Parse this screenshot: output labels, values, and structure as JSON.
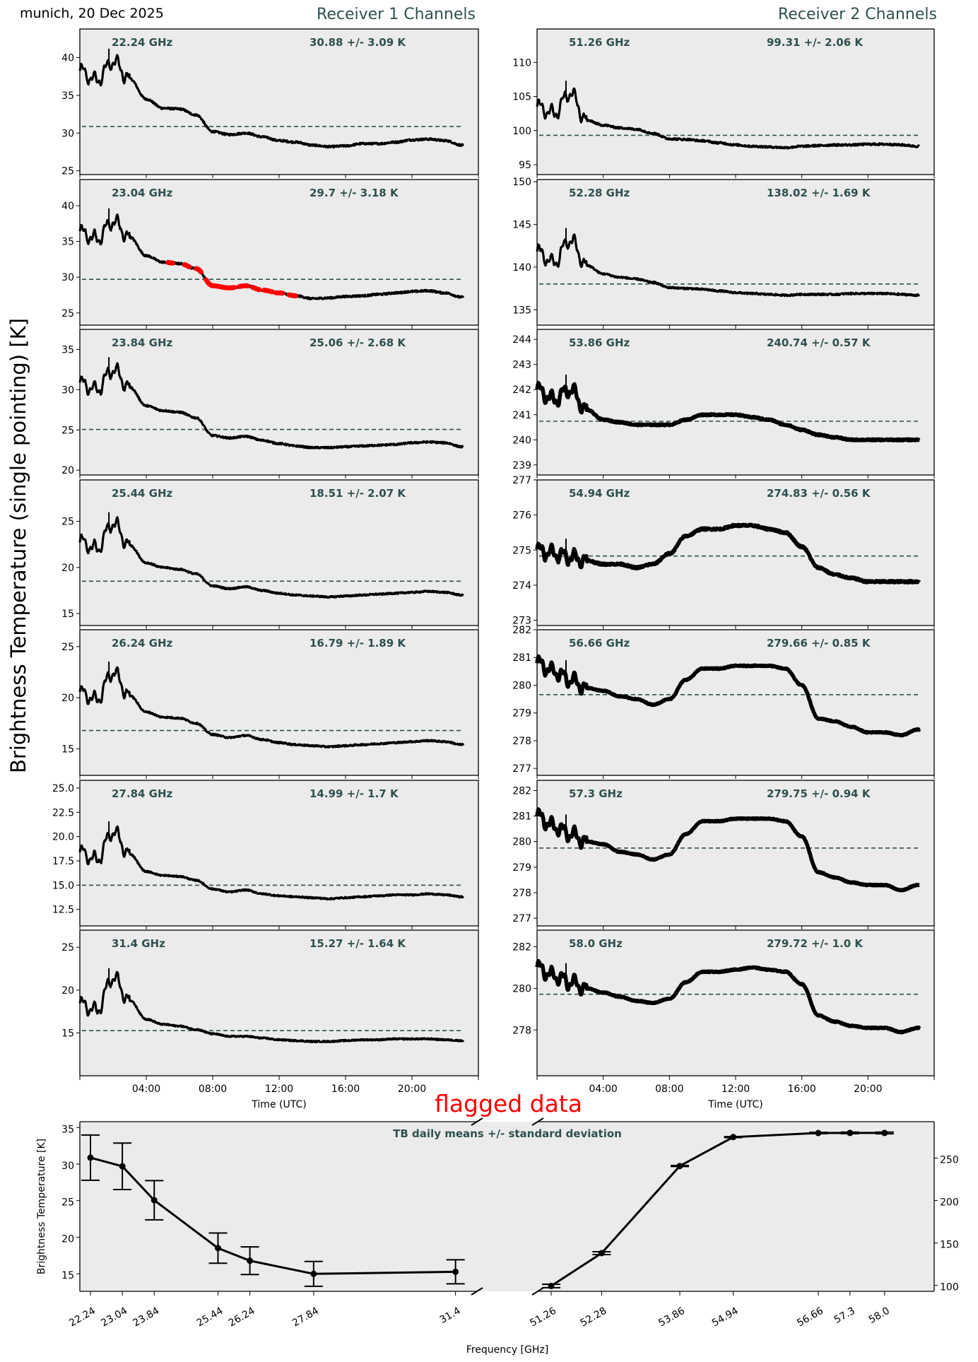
{
  "header": {
    "location_date": "munich, 20 Dec 2025",
    "receiver1_title": "Receiver 1 Channels",
    "receiver2_title": "Receiver 2 Channels",
    "shared_ylabel": "Brightness Temperature (single pointing) [K]",
    "flag_label": "flagged data"
  },
  "colors": {
    "accent": "#2f4f4f",
    "flag": "#ff0000",
    "panel_bg": "#ebebeb",
    "trace": "#000000"
  },
  "chart_data": [
    {
      "type": "line",
      "title": "Receiver 1 Channels",
      "xlabel": "Time (UTC)",
      "xticks": [
        "04:00",
        "08:00",
        "12:00",
        "16:00",
        "20:00"
      ],
      "x_hours": [
        0,
        1,
        2,
        3,
        4,
        5,
        6,
        7,
        8,
        9,
        10,
        11,
        12,
        13,
        14,
        15,
        16,
        17,
        18,
        19,
        20,
        21,
        22,
        23
      ],
      "series": [
        {
          "name": "22.24 GHz",
          "label": "30.88 +/- 3.09 K",
          "mean": 30.88,
          "ylim": [
            24.5,
            43.8
          ],
          "yticks": [
            "25",
            "30",
            "35",
            "40"
          ],
          "yvals": [
            25,
            30,
            35,
            40
          ],
          "values": [
            38.2,
            37.0,
            39.5,
            37.2,
            34.5,
            33.3,
            33.2,
            32.4,
            30.2,
            29.8,
            30.0,
            29.5,
            29.0,
            28.8,
            28.4,
            28.2,
            28.3,
            28.6,
            28.6,
            28.8,
            29.1,
            29.2,
            29.0,
            28.4
          ],
          "noise": 0.25
        },
        {
          "name": "23.04 GHz",
          "label": "29.7 +/- 3.18 K",
          "mean": 29.7,
          "ylim": [
            23.3,
            43.65
          ],
          "yticks": [
            "25",
            "30",
            "35",
            "40"
          ],
          "yvals": [
            25,
            30,
            35,
            40
          ],
          "values": [
            36.3,
            35.3,
            37.8,
            35.6,
            33.0,
            32.1,
            31.9,
            31.2,
            28.8,
            28.5,
            28.8,
            28.2,
            27.8,
            27.4,
            27.0,
            27.1,
            27.3,
            27.4,
            27.6,
            27.8,
            28.0,
            28.1,
            27.8,
            27.2
          ],
          "noise": 0.25,
          "flagged_hours": [
            [
              5.3,
              5.6
            ],
            [
              6.3,
              6.6
            ],
            [
              7.0,
              7.3
            ],
            [
              7.6,
              9.3
            ],
            [
              9.6,
              10.1
            ],
            [
              10.4,
              10.8
            ],
            [
              11.1,
              11.6
            ],
            [
              11.8,
              12.2
            ],
            [
              12.6,
              13.0
            ]
          ]
        },
        {
          "name": "23.84 GHz",
          "label": "25.06 +/- 2.68 K",
          "mean": 25.06,
          "ylim": [
            19.4,
            37.5
          ],
          "yticks": [
            "20",
            "25",
            "30",
            "35"
          ],
          "yvals": [
            20,
            25,
            30,
            35
          ],
          "values": [
            30.8,
            30.0,
            32.5,
            30.3,
            28.0,
            27.4,
            27.2,
            26.5,
            24.3,
            24.0,
            24.2,
            23.7,
            23.3,
            23.0,
            22.8,
            22.8,
            22.9,
            23.0,
            23.1,
            23.2,
            23.4,
            23.5,
            23.4,
            22.9
          ],
          "noise": 0.22
        },
        {
          "name": "25.44 GHz",
          "label": "18.51 +/- 2.07 K",
          "mean": 18.51,
          "ylim": [
            13.7,
            29.5
          ],
          "yticks": [
            "15",
            "20",
            "25"
          ],
          "yvals": [
            15,
            20,
            25
          ],
          "values": [
            22.8,
            22.0,
            24.8,
            22.4,
            20.5,
            20.0,
            19.8,
            19.3,
            18.0,
            17.7,
            17.9,
            17.5,
            17.2,
            17.0,
            16.9,
            16.8,
            16.9,
            17.0,
            17.1,
            17.2,
            17.3,
            17.4,
            17.3,
            17.0
          ],
          "noise": 0.2
        },
        {
          "name": "26.24 GHz",
          "label": "16.79 +/- 1.89 K",
          "mean": 16.79,
          "ylim": [
            12.4,
            26.65
          ],
          "yticks": [
            "15",
            "20",
            "25"
          ],
          "yvals": [
            15,
            20,
            25
          ],
          "values": [
            20.5,
            19.8,
            22.5,
            20.2,
            18.6,
            18.1,
            18.0,
            17.5,
            16.4,
            16.1,
            16.3,
            15.9,
            15.6,
            15.4,
            15.3,
            15.2,
            15.3,
            15.4,
            15.5,
            15.6,
            15.7,
            15.8,
            15.7,
            15.4
          ],
          "noise": 0.2
        },
        {
          "name": "27.84 GHz",
          "label": "14.99 +/- 1.7 K",
          "mean": 14.99,
          "ylim": [
            10.8,
            25.8
          ],
          "yticks": [
            "12.5",
            "15.0",
            "17.5",
            "20.0",
            "22.5",
            "25.0"
          ],
          "yvals": [
            12.5,
            15,
            17.5,
            20,
            22.5,
            25
          ],
          "values": [
            18.4,
            17.6,
            20.5,
            18.2,
            16.4,
            16.0,
            15.9,
            15.5,
            14.6,
            14.3,
            14.5,
            14.1,
            13.9,
            13.8,
            13.7,
            13.6,
            13.7,
            13.8,
            13.9,
            14.0,
            14.0,
            14.1,
            14.0,
            13.8
          ],
          "noise": 0.18
        },
        {
          "name": "31.4 GHz",
          "label": "15.27 +/- 1.64 K",
          "mean": 15.27,
          "ylim": [
            10.0,
            27.0
          ],
          "yticks": [
            "15",
            "20",
            "25"
          ],
          "yvals": [
            15,
            20,
            25
          ],
          "values": [
            18.4,
            17.6,
            21.5,
            18.8,
            16.6,
            16.0,
            15.8,
            15.4,
            14.9,
            14.6,
            14.6,
            14.4,
            14.2,
            14.1,
            14.0,
            14.0,
            14.1,
            14.2,
            14.2,
            14.3,
            14.3,
            14.3,
            14.2,
            14.1
          ],
          "noise": 0.18
        }
      ]
    },
    {
      "type": "line",
      "title": "Receiver 2 Channels",
      "xlabel": "Time (UTC)",
      "xticks": [
        "04:00",
        "08:00",
        "12:00",
        "16:00",
        "20:00"
      ],
      "x_hours": [
        0,
        1,
        2,
        3,
        4,
        5,
        6,
        7,
        8,
        9,
        10,
        11,
        12,
        13,
        14,
        15,
        16,
        17,
        18,
        19,
        20,
        21,
        22,
        23
      ],
      "series": [
        {
          "name": "51.26 GHz",
          "label": "99.31 +/- 2.06 K",
          "mean": 99.31,
          "ylim": [
            93.55,
            114.9
          ],
          "yticks": [
            "95",
            "100",
            "105",
            "110"
          ],
          "yvals": [
            95,
            100,
            105,
            110
          ],
          "values": [
            103.5,
            102.5,
            105.5,
            101.5,
            100.8,
            100.4,
            100.2,
            99.6,
            98.8,
            98.7,
            98.5,
            98.2,
            97.9,
            97.7,
            97.6,
            97.5,
            97.7,
            97.8,
            97.9,
            97.9,
            98.0,
            98.0,
            97.9,
            97.7
          ],
          "noise": 0.25
        },
        {
          "name": "52.28 GHz",
          "label": "138.02 +/- 1.69 K",
          "mean": 138.02,
          "ylim": [
            133.2,
            150.25
          ],
          "yticks": [
            "135",
            "140",
            "145",
            "150"
          ],
          "yvals": [
            135,
            140,
            145,
            150
          ],
          "values": [
            141.8,
            140.5,
            143.2,
            140.2,
            139.2,
            138.8,
            138.6,
            138.2,
            137.6,
            137.5,
            137.4,
            137.2,
            137.0,
            136.9,
            136.8,
            136.7,
            136.8,
            136.8,
            136.8,
            136.9,
            136.9,
            136.9,
            136.8,
            136.7
          ],
          "noise": 0.22
        },
        {
          "name": "53.86 GHz",
          "label": "240.74 +/- 0.57 K",
          "mean": 240.74,
          "ylim": [
            238.6,
            244.4
          ],
          "yticks": [
            "239",
            "240",
            "241",
            "242",
            "243",
            "244"
          ],
          "yvals": [
            239,
            240,
            241,
            242,
            243,
            244
          ],
          "values": [
            242.0,
            241.6,
            242.0,
            241.2,
            240.8,
            240.7,
            240.6,
            240.6,
            240.6,
            240.8,
            241.0,
            241.0,
            241.0,
            240.9,
            240.8,
            240.6,
            240.4,
            240.2,
            240.1,
            240.0,
            240.0,
            240.0,
            240.0,
            240.0
          ],
          "noise": 0.18
        },
        {
          "name": "54.94 GHz",
          "label": "274.83 +/- 0.56 K",
          "mean": 274.83,
          "ylim": [
            272.85,
            277.0
          ],
          "yticks": [
            "273",
            "274",
            "275",
            "276",
            "277"
          ],
          "yvals": [
            273,
            274,
            275,
            276,
            277
          ],
          "values": [
            275.0,
            274.9,
            274.8,
            274.7,
            274.6,
            274.6,
            274.5,
            274.6,
            274.9,
            275.4,
            275.6,
            275.6,
            275.7,
            275.7,
            275.6,
            275.5,
            275.1,
            274.5,
            274.3,
            274.2,
            274.1,
            274.1,
            274.1,
            274.1
          ],
          "noise": 0.25
        },
        {
          "name": "56.66 GHz",
          "label": "279.66 +/- 0.85 K",
          "mean": 279.66,
          "ylim": [
            276.75,
            282.0
          ],
          "yticks": [
            "277",
            "278",
            "279",
            "280",
            "281",
            "282"
          ],
          "yvals": [
            277,
            278,
            279,
            280,
            281,
            282
          ],
          "values": [
            280.8,
            280.5,
            280.2,
            279.9,
            279.8,
            279.6,
            279.5,
            279.3,
            279.5,
            280.2,
            280.6,
            280.6,
            280.7,
            280.7,
            280.7,
            280.6,
            280.0,
            278.8,
            278.7,
            278.5,
            278.3,
            278.3,
            278.2,
            278.4
          ],
          "noise": 0.13
        },
        {
          "name": "57.3 GHz",
          "label": "279.75 +/- 0.94 K",
          "mean": 279.75,
          "ylim": [
            276.7,
            282.4
          ],
          "yticks": [
            "277",
            "278",
            "279",
            "280",
            "281",
            "282"
          ],
          "yvals": [
            277,
            278,
            279,
            280,
            281,
            282
          ],
          "values": [
            281.0,
            280.6,
            280.3,
            280.0,
            279.9,
            279.6,
            279.5,
            279.3,
            279.5,
            280.3,
            280.8,
            280.8,
            280.9,
            280.9,
            280.9,
            280.8,
            280.2,
            278.8,
            278.6,
            278.4,
            278.3,
            278.3,
            278.1,
            278.3
          ],
          "noise": 0.13
        },
        {
          "name": "58.0 GHz",
          "label": "279.72 +/- 1.0 K",
          "mean": 279.72,
          "ylim": [
            275.8,
            282.8
          ],
          "yticks": [
            "278",
            "280",
            "282"
          ],
          "yvals": [
            278,
            280,
            282
          ],
          "values": [
            281.0,
            280.6,
            280.3,
            280.0,
            279.8,
            279.6,
            279.4,
            279.3,
            279.5,
            280.3,
            280.8,
            280.8,
            280.9,
            281.0,
            280.9,
            280.8,
            280.2,
            278.7,
            278.4,
            278.2,
            278.1,
            278.1,
            277.9,
            278.1
          ],
          "noise": 0.14
        }
      ]
    },
    {
      "type": "line",
      "title": "TB daily means +/- standard deviation",
      "xlabel": "Frequency [GHz]",
      "ylabel": "Brightness Temperature [K]",
      "left": {
        "x": [
          22.24,
          23.04,
          23.84,
          25.44,
          26.24,
          27.84,
          31.4
        ],
        "xtick_labels": [
          "22.24",
          "23.04",
          "23.84",
          "25.44",
          "26.24",
          "27.84",
          "31.4"
        ],
        "y": [
          30.88,
          29.7,
          25.06,
          18.51,
          16.79,
          14.99,
          15.27
        ],
        "err": [
          3.09,
          3.18,
          2.68,
          2.07,
          1.89,
          1.7,
          1.64
        ],
        "ylim": [
          12.6,
          35.8
        ],
        "yticks": [
          "15",
          "20",
          "25",
          "30",
          "35"
        ],
        "yvals": [
          15,
          20,
          25,
          30,
          35
        ]
      },
      "right": {
        "x": [
          51.26,
          52.28,
          53.86,
          54.94,
          56.66,
          57.3,
          58.0
        ],
        "xtick_labels": [
          "51.26",
          "52.28",
          "53.86",
          "54.94",
          "56.66",
          "57.3",
          "58.0"
        ],
        "y": [
          99.31,
          138.02,
          240.74,
          274.83,
          279.66,
          279.75,
          279.72
        ],
        "err": [
          2.06,
          1.69,
          0.57,
          0.56,
          0.85,
          0.94,
          1.0
        ],
        "ylim": [
          93.0,
          293.0
        ],
        "yticks": [
          "100",
          "150",
          "200",
          "250"
        ],
        "yvals": [
          100,
          150,
          200,
          250
        ]
      }
    }
  ]
}
